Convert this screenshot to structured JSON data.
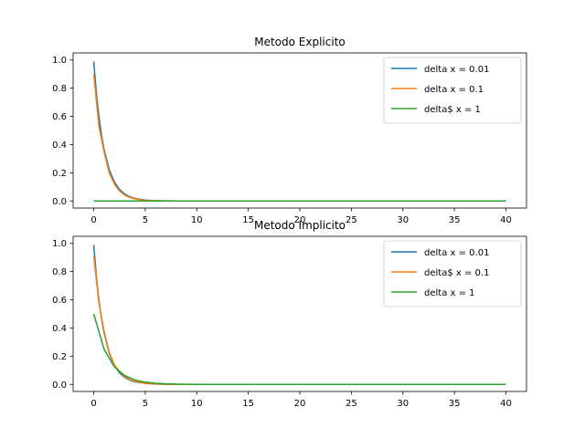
{
  "chart_data": [
    {
      "type": "line",
      "title": "Metodo Explicito",
      "xlabel": "",
      "ylabel": "",
      "xlim": [
        -2,
        42
      ],
      "ylim": [
        -0.05,
        1.05
      ],
      "xticks": [
        0,
        5,
        10,
        15,
        20,
        25,
        30,
        35,
        40
      ],
      "yticks": [
        0.0,
        0.2,
        0.4,
        0.6,
        0.8,
        1.0
      ],
      "grid": false,
      "legend_position": "upper right",
      "series": [
        {
          "name": "delta x = 0.01",
          "color": "#1f77b4",
          "x": [
            0,
            0.25,
            0.5,
            0.75,
            1,
            1.5,
            2,
            2.5,
            3,
            3.5,
            4,
            5,
            6,
            7,
            8,
            10,
            15,
            20,
            25,
            30,
            35,
            40
          ],
          "y": [
            0.99,
            0.77,
            0.6,
            0.47,
            0.367,
            0.223,
            0.135,
            0.082,
            0.05,
            0.03,
            0.018,
            0.007,
            0.0025,
            0.0009,
            0.0003,
            0.0,
            0.0,
            0.0,
            0.0,
            0.0,
            0.0,
            0.0
          ]
        },
        {
          "name": "delta x = 0.1",
          "color": "#ff7f0e",
          "x": [
            0,
            0.5,
            1,
            1.5,
            2,
            2.5,
            3,
            3.5,
            4,
            5,
            6,
            7,
            8,
            10,
            15,
            20,
            25,
            30,
            35,
            40
          ],
          "y": [
            0.9,
            0.53,
            0.35,
            0.2,
            0.12,
            0.07,
            0.042,
            0.025,
            0.015,
            0.005,
            0.0018,
            0.0006,
            0.0002,
            0.0,
            0.0,
            0.0,
            0.0,
            0.0,
            0.0,
            0.0
          ]
        },
        {
          "name": "delta$ x = 1",
          "color": "#2ca02c",
          "x": [
            0,
            5,
            10,
            15,
            20,
            25,
            30,
            35,
            40
          ],
          "y": [
            0,
            0,
            0,
            0,
            0,
            0,
            0,
            0,
            0
          ]
        }
      ]
    },
    {
      "type": "line",
      "title": "Metodo Implicito",
      "xlabel": "",
      "ylabel": "",
      "xlim": [
        -2,
        42
      ],
      "ylim": [
        -0.05,
        1.05
      ],
      "xticks": [
        0,
        5,
        10,
        15,
        20,
        25,
        30,
        35,
        40
      ],
      "yticks": [
        0.0,
        0.2,
        0.4,
        0.6,
        0.8,
        1.0
      ],
      "grid": false,
      "legend_position": "upper right",
      "series": [
        {
          "name": "delta x = 0.01",
          "color": "#1f77b4",
          "x": [
            0,
            0.25,
            0.5,
            0.75,
            1,
            1.5,
            2,
            2.5,
            3,
            3.5,
            4,
            5,
            6,
            7,
            8,
            10,
            15,
            20,
            25,
            30,
            35,
            40
          ],
          "y": [
            0.99,
            0.77,
            0.6,
            0.47,
            0.367,
            0.223,
            0.135,
            0.082,
            0.05,
            0.03,
            0.018,
            0.007,
            0.0025,
            0.0009,
            0.0003,
            0.0,
            0.0,
            0.0,
            0.0,
            0.0,
            0.0,
            0.0
          ]
        },
        {
          "name": "delta$ x = 0.1",
          "color": "#ff7f0e",
          "x": [
            0,
            0.5,
            1,
            1.5,
            2,
            2.5,
            3,
            3.5,
            4,
            5,
            6,
            7,
            8,
            10,
            15,
            20,
            25,
            30,
            35,
            40
          ],
          "y": [
            0.91,
            0.58,
            0.38,
            0.23,
            0.14,
            0.09,
            0.055,
            0.034,
            0.021,
            0.008,
            0.003,
            0.001,
            0.0004,
            0.0,
            0.0,
            0.0,
            0.0,
            0.0,
            0.0,
            0.0
          ]
        },
        {
          "name": "delta x = 1",
          "color": "#2ca02c",
          "x": [
            0,
            1,
            2,
            3,
            4,
            5,
            6,
            7,
            8,
            9,
            10,
            12,
            15,
            20,
            25,
            30,
            35,
            40
          ],
          "y": [
            0.5,
            0.25,
            0.125,
            0.0625,
            0.031,
            0.016,
            0.008,
            0.004,
            0.002,
            0.001,
            0.0005,
            0.0001,
            0.0,
            0.0,
            0.0,
            0.0,
            0.0,
            0.0
          ]
        }
      ]
    }
  ]
}
